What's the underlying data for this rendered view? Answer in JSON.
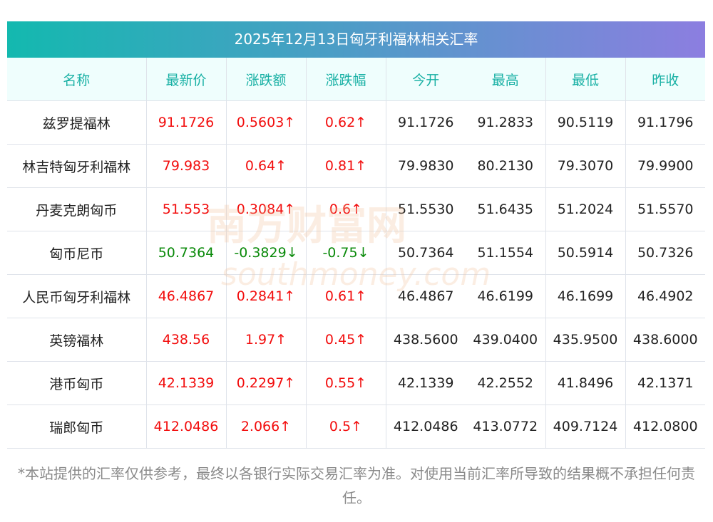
{
  "title": "2025年12月13日匈牙利福林相关汇率",
  "headers": [
    "名称",
    "最新价",
    "涨跌额",
    "涨跌幅",
    "今开",
    "最高",
    "最低",
    "昨收"
  ],
  "rows": [
    {
      "name": "兹罗提福林",
      "price": "91.1726",
      "change": "0.5603↑",
      "pct": "0.62↑",
      "open": "91.1726",
      "high": "91.2833",
      "low": "90.5119",
      "prev": "91.1796",
      "dir": "up"
    },
    {
      "name": "林吉特匈牙利福林",
      "price": "79.983",
      "change": "0.64↑",
      "pct": "0.81↑",
      "open": "79.9830",
      "high": "80.2130",
      "low": "79.3070",
      "prev": "79.9900",
      "dir": "up"
    },
    {
      "name": "丹麦克朗匈币",
      "price": "51.553",
      "change": "0.3084↑",
      "pct": "0.6↑",
      "open": "51.5530",
      "high": "51.6435",
      "low": "51.2024",
      "prev": "51.5570",
      "dir": "up"
    },
    {
      "name": "匈币尼币",
      "price": "50.7364",
      "change": "-0.3829↓",
      "pct": "-0.75↓",
      "open": "50.7364",
      "high": "51.1554",
      "low": "50.5914",
      "prev": "50.7326",
      "dir": "down"
    },
    {
      "name": "人民币匈牙利福林",
      "price": "46.4867",
      "change": "0.2841↑",
      "pct": "0.61↑",
      "open": "46.4867",
      "high": "46.6199",
      "low": "46.1699",
      "prev": "46.4902",
      "dir": "up"
    },
    {
      "name": "英镑福林",
      "price": "438.56",
      "change": "1.97↑",
      "pct": "0.45↑",
      "open": "438.5600",
      "high": "439.0400",
      "low": "435.9500",
      "prev": "438.6000",
      "dir": "up"
    },
    {
      "name": "港币匈币",
      "price": "42.1339",
      "change": "0.2297↑",
      "pct": "0.55↑",
      "open": "42.1339",
      "high": "42.2552",
      "low": "41.8496",
      "prev": "42.1371",
      "dir": "up"
    },
    {
      "name": "瑞郎匈币",
      "price": "412.0486",
      "change": "2.066↑",
      "pct": "0.5↑",
      "open": "412.0486",
      "high": "413.0772",
      "low": "409.7124",
      "prev": "412.0800",
      "dir": "up"
    }
  ],
  "watermark": {
    "cn": "南方财富网",
    "en": "southmoney.com"
  },
  "note": "*本站提供的汇率仅供参考，最终以各银行实际交易汇率为准。对使用当前汇率所导致的结果概不承担任何责任。",
  "colors": {
    "up": "#f20d0d",
    "down": "#0a8a0a",
    "header_text": "#17b0a4"
  }
}
